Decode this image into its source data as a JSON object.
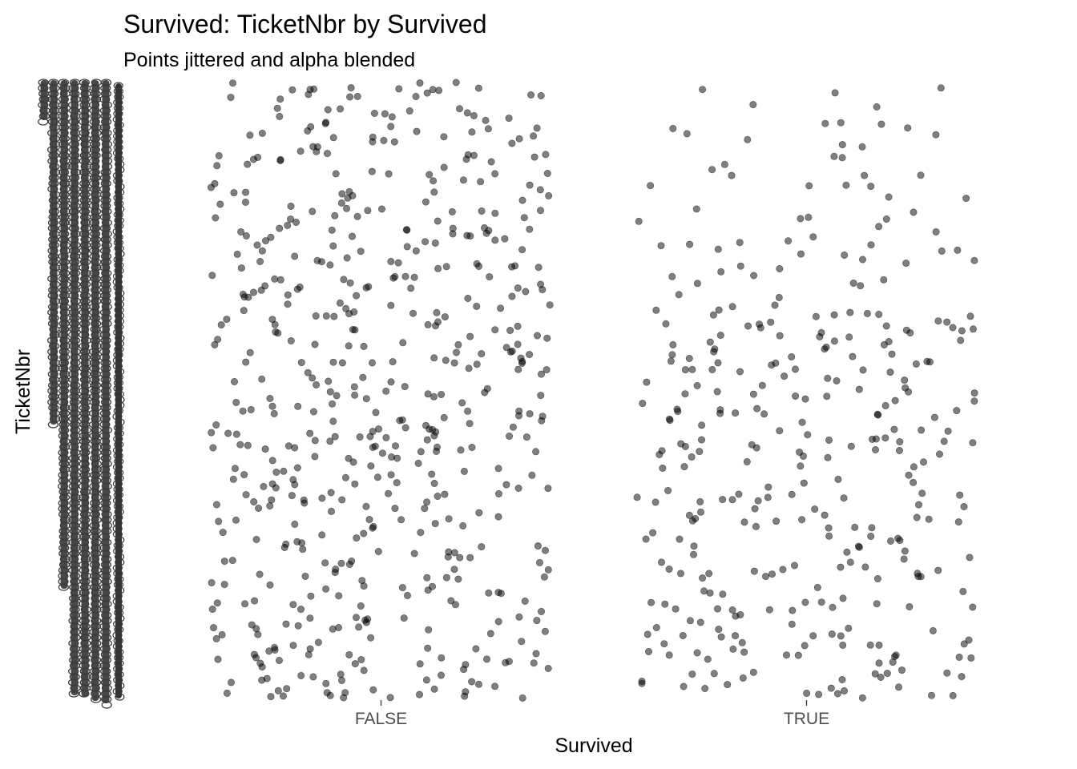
{
  "chart_data": {
    "type": "scatter",
    "title": "Survived: TicketNbr by Survived",
    "subtitle": "Points jittered and alpha blended",
    "xlabel": "Survived",
    "ylabel": "TicketNbr",
    "categories": [
      "FALSE",
      "TRUE"
    ],
    "jitter": true,
    "point_color": "#000000",
    "point_alpha": 0.5,
    "grid": false,
    "legend": "none",
    "y_tick_labels_note": "y tick labels are overplotted and illegible",
    "series": [
      {
        "category": "FALSE",
        "n_points": 549
      },
      {
        "category": "TRUE",
        "n_points": 342
      }
    ]
  }
}
